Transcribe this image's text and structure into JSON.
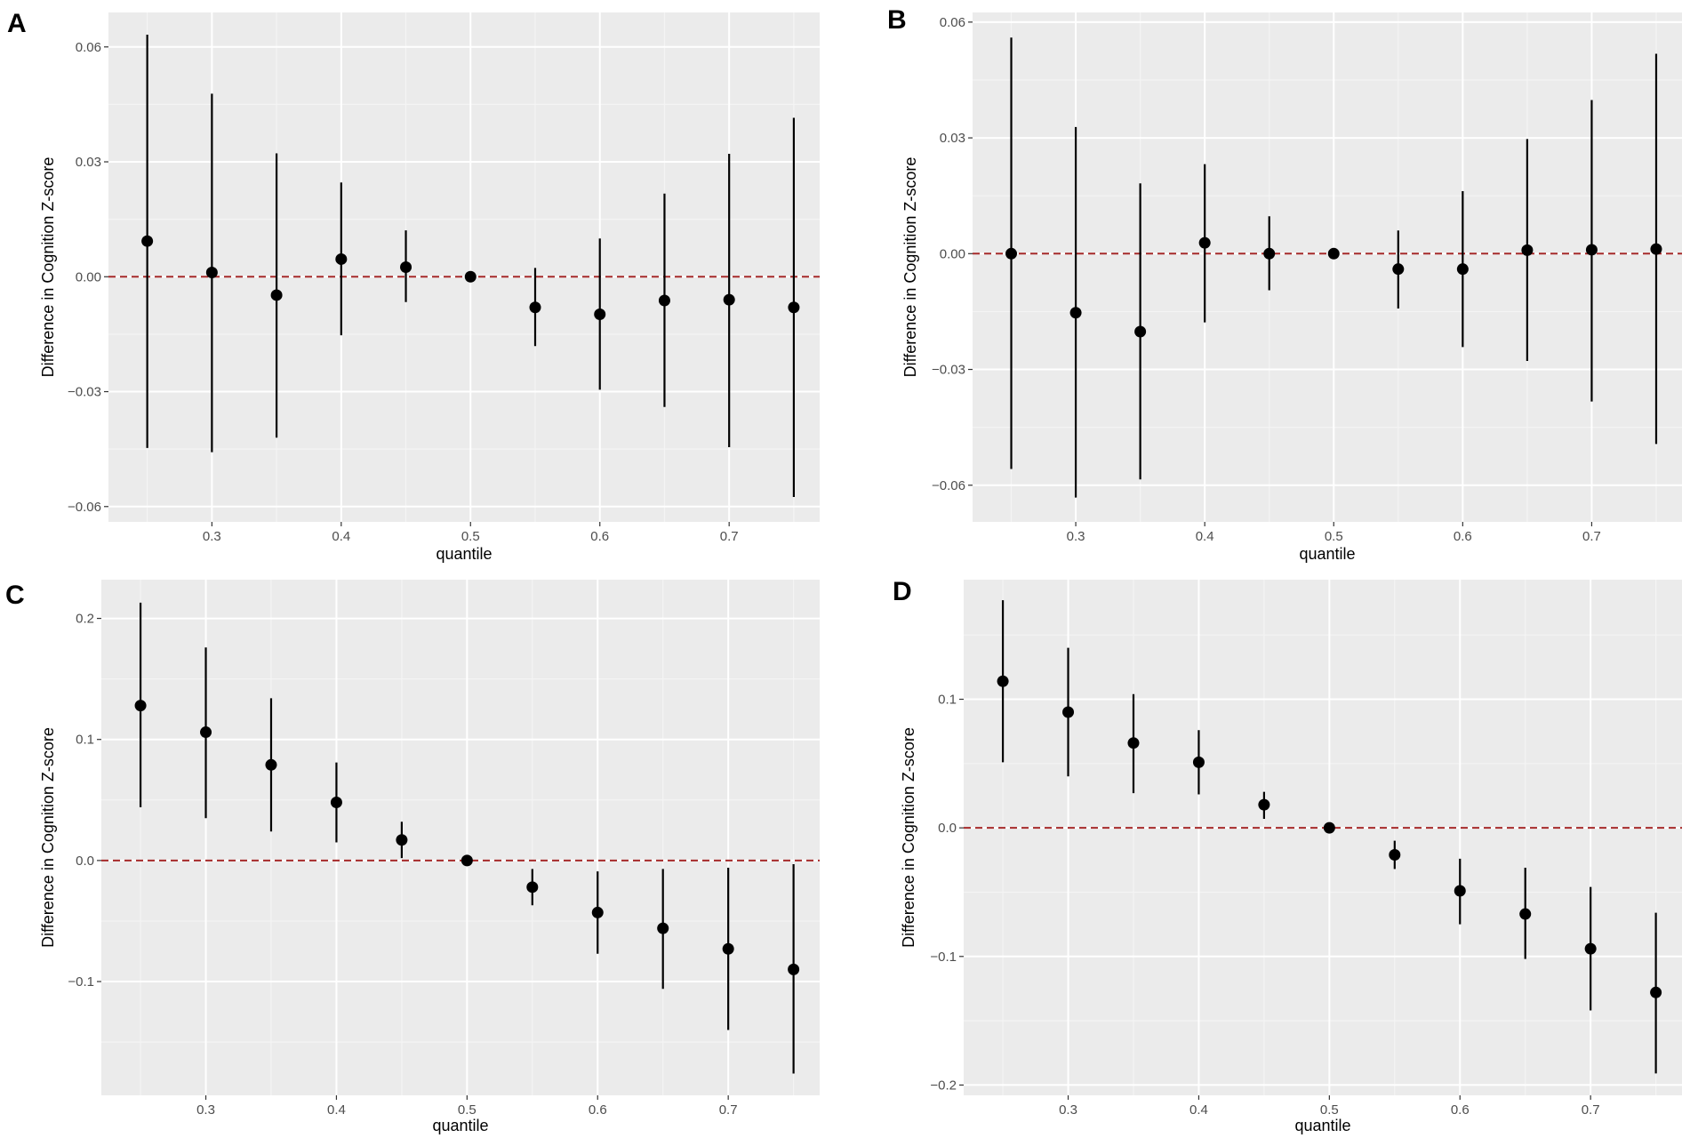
{
  "colors": {
    "panel_background": "#ebebeb",
    "grid_major": "#ffffff",
    "grid_minor": "#f4f4f4",
    "reference_line": "#a52a2a",
    "points": "#000000",
    "tick_text": "#4d4d4d",
    "tick_mark": "#333333"
  },
  "chart_data": [
    {
      "panel": "A",
      "type": "scatter",
      "xlabel": "quantile",
      "ylabel": "Difference in Cognition Z-score",
      "xlim": [
        0.22,
        0.77
      ],
      "ylim": [
        -0.064,
        0.069
      ],
      "xticks": [
        0.3,
        0.4,
        0.5,
        0.6,
        0.7
      ],
      "xtick_labels": [
        "0.3",
        "0.4",
        "0.5",
        "0.6",
        "0.7"
      ],
      "yticks": [
        -0.06,
        -0.03,
        0.0,
        0.03,
        0.06
      ],
      "ytick_labels": [
        "−0.06",
        "−0.03",
        "0.00",
        "0.03",
        "0.06"
      ],
      "reference_line": 0.0,
      "grid": true,
      "x": [
        0.25,
        0.3,
        0.35,
        0.4,
        0.45,
        0.5,
        0.55,
        0.6,
        0.65,
        0.7,
        0.75
      ],
      "estimate": [
        0.0093,
        0.0011,
        -0.0048,
        0.0046,
        0.0025,
        0.0,
        -0.008,
        -0.0098,
        -0.0062,
        -0.006,
        -0.008
      ],
      "lower": [
        -0.0447,
        -0.0458,
        -0.042,
        -0.0153,
        -0.0066,
        0.0,
        -0.0181,
        -0.0295,
        -0.034,
        -0.0445,
        -0.0575
      ],
      "upper": [
        0.0632,
        0.0478,
        0.0322,
        0.0246,
        0.0121,
        0.0,
        0.0023,
        0.01,
        0.0217,
        0.0321,
        0.0415
      ]
    },
    {
      "panel": "B",
      "type": "scatter",
      "xlabel": "quantile",
      "ylabel": "Difference in Cognition Z-score",
      "xlim": [
        0.22,
        0.77
      ],
      "ylim": [
        -0.0695,
        0.0625
      ],
      "xticks": [
        0.3,
        0.4,
        0.5,
        0.6,
        0.7
      ],
      "xtick_labels": [
        "0.3",
        "0.4",
        "0.5",
        "0.6",
        "0.7"
      ],
      "yticks": [
        -0.06,
        -0.03,
        0.0,
        0.03,
        0.06
      ],
      "ytick_labels": [
        "−0.06",
        "−0.03",
        "0.00",
        "0.03",
        "0.06"
      ],
      "reference_line": 0.0,
      "grid": true,
      "x": [
        0.25,
        0.3,
        0.35,
        0.4,
        0.45,
        0.5,
        0.55,
        0.6,
        0.65,
        0.7,
        0.75
      ],
      "estimate": [
        0.0,
        -0.0153,
        -0.0202,
        0.0028,
        0.0,
        0.0,
        -0.004,
        -0.004,
        0.0009,
        0.001,
        0.0012
      ],
      "lower": [
        -0.0558,
        -0.0632,
        -0.0585,
        -0.0178,
        -0.0095,
        0.0,
        -0.0142,
        -0.0242,
        -0.0278,
        -0.0383,
        -0.0493
      ],
      "upper": [
        0.056,
        0.0328,
        0.0182,
        0.0232,
        0.0097,
        0.0,
        0.006,
        0.0162,
        0.0297,
        0.0398,
        0.0518
      ]
    },
    {
      "panel": "C",
      "type": "scatter",
      "xlabel": "quantile",
      "ylabel": "Difference in Cognition Z-score",
      "xlim": [
        0.22,
        0.77
      ],
      "ylim": [
        -0.194,
        0.232
      ],
      "xticks": [
        0.3,
        0.4,
        0.5,
        0.6,
        0.7
      ],
      "xtick_labels": [
        "0.3",
        "0.4",
        "0.5",
        "0.6",
        "0.7"
      ],
      "yticks": [
        -0.1,
        0.0,
        0.1,
        0.2
      ],
      "ytick_labels": [
        "−0.1",
        "0.0",
        "0.1",
        "0.2"
      ],
      "reference_line": 0.0,
      "grid": true,
      "x": [
        0.25,
        0.3,
        0.35,
        0.4,
        0.45,
        0.5,
        0.55,
        0.6,
        0.65,
        0.7,
        0.75
      ],
      "estimate": [
        0.128,
        0.106,
        0.079,
        0.048,
        0.017,
        0.0,
        -0.022,
        -0.043,
        -0.056,
        -0.073,
        -0.09
      ],
      "lower": [
        0.044,
        0.035,
        0.024,
        0.015,
        0.002,
        0.0,
        -0.037,
        -0.077,
        -0.106,
        -0.14,
        -0.176
      ],
      "upper": [
        0.213,
        0.176,
        0.134,
        0.081,
        0.032,
        0.0,
        -0.007,
        -0.009,
        -0.007,
        -0.006,
        -0.003
      ]
    },
    {
      "panel": "D",
      "type": "scatter",
      "xlabel": "quantile",
      "ylabel": "Difference in Cognition Z-score",
      "xlim": [
        0.22,
        0.77
      ],
      "ylim": [
        -0.208,
        0.193
      ],
      "xticks": [
        0.3,
        0.4,
        0.5,
        0.6,
        0.7
      ],
      "xtick_labels": [
        "0.3",
        "0.4",
        "0.5",
        "0.6",
        "0.7"
      ],
      "yticks": [
        -0.2,
        -0.1,
        0.0,
        0.1
      ],
      "ytick_labels": [
        "−0.2",
        "−0.1",
        "0.0",
        "0.1"
      ],
      "reference_line": 0.0,
      "grid": true,
      "x": [
        0.25,
        0.3,
        0.35,
        0.4,
        0.45,
        0.5,
        0.55,
        0.6,
        0.65,
        0.7,
        0.75
      ],
      "estimate": [
        0.114,
        0.09,
        0.066,
        0.051,
        0.018,
        0.0,
        -0.021,
        -0.049,
        -0.067,
        -0.094,
        -0.128
      ],
      "lower": [
        0.051,
        0.04,
        0.027,
        0.026,
        0.007,
        0.0,
        -0.032,
        -0.075,
        -0.102,
        -0.142,
        -0.191
      ],
      "upper": [
        0.177,
        0.14,
        0.104,
        0.076,
        0.028,
        0.0,
        -0.01,
        -0.024,
        -0.031,
        -0.046,
        -0.066
      ]
    }
  ]
}
